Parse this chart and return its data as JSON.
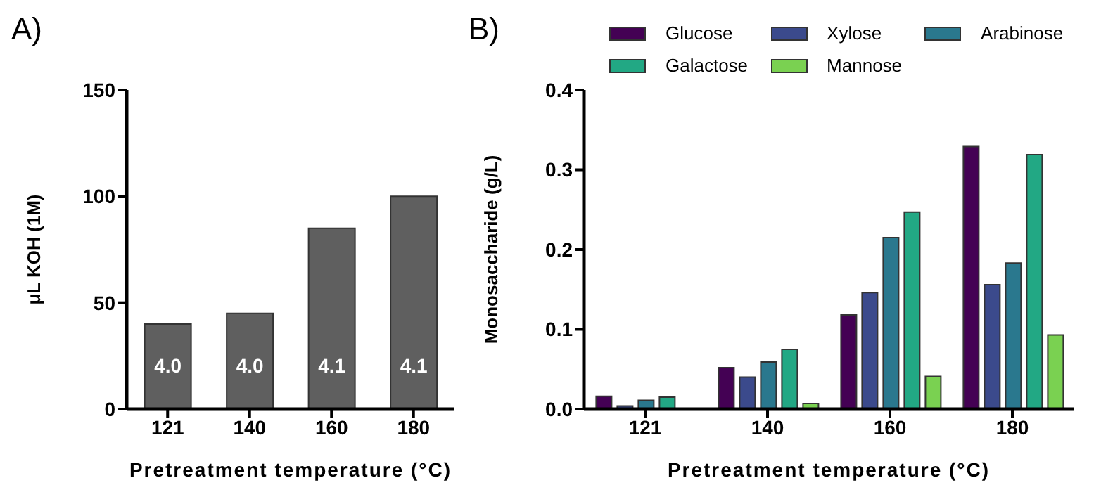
{
  "chart_data": [
    {
      "type": "bar",
      "title": "A)",
      "categories": [
        "121",
        "140",
        "160",
        "180"
      ],
      "values": [
        40,
        45,
        85,
        100
      ],
      "annotations": [
        "4.0",
        "4.0",
        "4.1",
        "4.1"
      ],
      "color": "#5f5f5f",
      "xlabel": "Pretreatment temperature (°C)",
      "ylabel": "μL KOH (1M)",
      "ylim": [
        0,
        150
      ],
      "yticks": [
        0,
        50,
        100,
        150
      ],
      "grid": false,
      "legend": false
    },
    {
      "type": "bar",
      "title": "B)",
      "categories": [
        "121",
        "140",
        "160",
        "180"
      ],
      "xlabel": "Pretreatment temperature (°C)",
      "ylabel": "Monosaccharide (g/L)",
      "ylim": [
        0,
        0.4
      ],
      "yticks": [
        {
          "value": 0,
          "label": "0.0"
        },
        0.1,
        0.2,
        0.3,
        0.4
      ],
      "grid": false,
      "legend": "top",
      "series": [
        {
          "name": "Glucose",
          "color": "#440154",
          "values": [
            0.016,
            0.052,
            0.118,
            0.329
          ]
        },
        {
          "name": "Xylose",
          "color": "#3b4a8c",
          "values": [
            0.004,
            0.04,
            0.146,
            0.156
          ]
        },
        {
          "name": "Arabinose",
          "color": "#2a788e",
          "values": [
            0.011,
            0.059,
            0.215,
            0.183
          ]
        },
        {
          "name": "Galactose",
          "color": "#22a884",
          "values": [
            0.015,
            0.075,
            0.247,
            0.319
          ]
        },
        {
          "name": "Mannose",
          "color": "#7ad151",
          "values": [
            0,
            0.007,
            0.041,
            0.093
          ]
        }
      ]
    }
  ]
}
